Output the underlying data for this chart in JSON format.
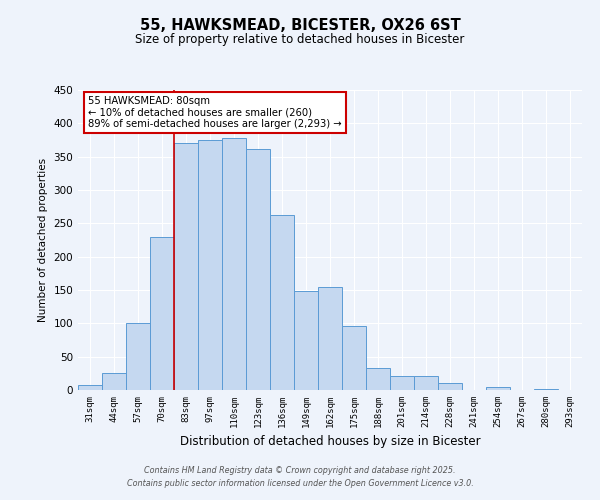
{
  "title": "55, HAWKSMEAD, BICESTER, OX26 6ST",
  "subtitle": "Size of property relative to detached houses in Bicester",
  "xlabel": "Distribution of detached houses by size in Bicester",
  "ylabel": "Number of detached properties",
  "categories": [
    "31sqm",
    "44sqm",
    "57sqm",
    "70sqm",
    "83sqm",
    "97sqm",
    "110sqm",
    "123sqm",
    "136sqm",
    "149sqm",
    "162sqm",
    "175sqm",
    "188sqm",
    "201sqm",
    "214sqm",
    "228sqm",
    "241sqm",
    "254sqm",
    "267sqm",
    "280sqm",
    "293sqm"
  ],
  "values": [
    8,
    26,
    100,
    230,
    370,
    375,
    378,
    362,
    263,
    148,
    154,
    96,
    33,
    21,
    21,
    10,
    0,
    4,
    0,
    2,
    0
  ],
  "bar_color": "#c5d8f0",
  "bar_edge_color": "#5b9bd5",
  "bar_width": 1.0,
  "vline_x_index": 4,
  "vline_color": "#cc0000",
  "annotation_title": "55 HAWKSMEAD: 80sqm",
  "annotation_line1": "← 10% of detached houses are smaller (260)",
  "annotation_line2": "89% of semi-detached houses are larger (2,293) →",
  "annotation_box_color": "#ffffff",
  "annotation_box_edge": "#cc0000",
  "ylim": [
    0,
    450
  ],
  "yticks": [
    0,
    50,
    100,
    150,
    200,
    250,
    300,
    350,
    400,
    450
  ],
  "bg_color": "#eef3fb",
  "grid_color": "#ffffff",
  "footer_line1": "Contains HM Land Registry data © Crown copyright and database right 2025.",
  "footer_line2": "Contains public sector information licensed under the Open Government Licence v3.0."
}
